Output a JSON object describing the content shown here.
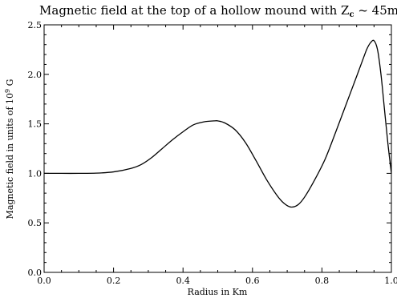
{
  "chart_data": {
    "type": "line",
    "title": "Magnetic field at the top of a hollow mound with Z",
    "title_subscript": "c",
    "title_suffix": " ~ 45m",
    "xlabel": "Radius in Km",
    "ylabel_prefix": "Magnetic field in units of 10",
    "ylabel_superscript": "9",
    "ylabel_suffix": " G",
    "xlim": [
      0.0,
      1.0
    ],
    "ylim": [
      0.0,
      2.5
    ],
    "x_ticks": [
      "0.0",
      "0.2",
      "0.4",
      "0.6",
      "0.8",
      "1.0"
    ],
    "y_ticks": [
      "0.0",
      "0.5",
      "1.0",
      "1.5",
      "2.0",
      "2.5"
    ],
    "grid": false,
    "series": [
      {
        "color": "#000000",
        "x": [
          0.0,
          0.05,
          0.1,
          0.15,
          0.2,
          0.25,
          0.28,
          0.31,
          0.34,
          0.37,
          0.4,
          0.43,
          0.46,
          0.49,
          0.5,
          0.52,
          0.55,
          0.58,
          0.61,
          0.64,
          0.67,
          0.69,
          0.71,
          0.73,
          0.75,
          0.78,
          0.81,
          0.84,
          0.87,
          0.9,
          0.92,
          0.93,
          0.94,
          0.95,
          0.96,
          0.97,
          0.98,
          0.99,
          1.0
        ],
        "y": [
          1.0,
          1.0,
          1.0,
          1.002,
          1.015,
          1.05,
          1.09,
          1.16,
          1.25,
          1.34,
          1.42,
          1.49,
          1.52,
          1.53,
          1.53,
          1.51,
          1.44,
          1.31,
          1.13,
          0.94,
          0.78,
          0.7,
          0.66,
          0.68,
          0.76,
          0.94,
          1.15,
          1.42,
          1.7,
          1.98,
          2.17,
          2.26,
          2.32,
          2.34,
          2.25,
          2.0,
          1.65,
          1.3,
          1.0
        ]
      }
    ]
  }
}
